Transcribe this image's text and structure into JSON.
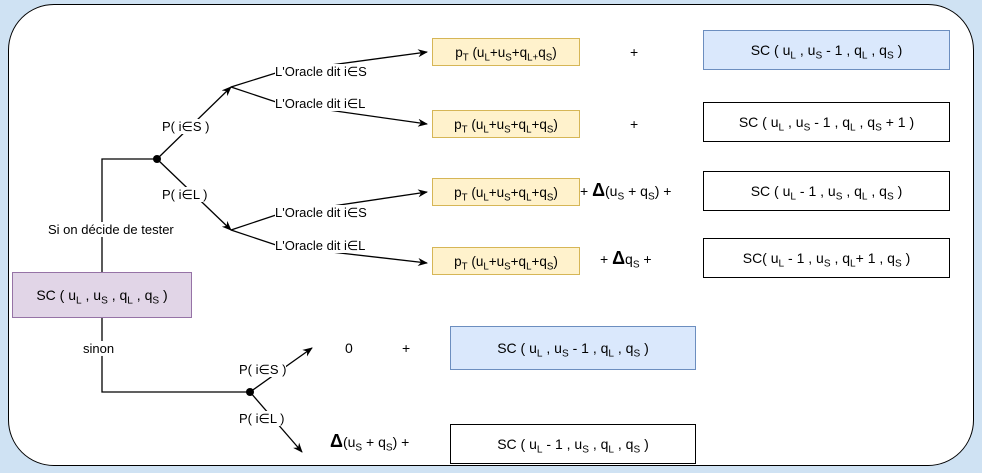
{
  "root": {
    "label": "SC ( u<sub>L</sub> , u<sub>S</sub> , q<sub>L</sub> , q<sub>S</sub> )"
  },
  "labels": {
    "test": "Si on décide de tester",
    "sinon": "sinon",
    "p_s_test": "P( i∈S )",
    "p_l_test": "P( i∈L )",
    "p_s_sinon": "P( i∈S )",
    "p_l_sinon": "P( i∈L )",
    "oracle_s_1": "L'Oracle dit i∈S",
    "oracle_l_1": "L'Oracle dit i∈L",
    "oracle_s_2": "L'Oracle dit i∈S",
    "oracle_l_2": "L'Oracle dit i∈L"
  },
  "rows": [
    {
      "prob": "p<sub>T</sub> (u<sub>L</sub>+u<sub>S</sub>+q<sub>L+</sub>q<sub>S</sub>)",
      "mid": "+",
      "sc": "SC ( u<sub>L</sub> , u<sub>S</sub> - 1 , q<sub>L</sub> , q<sub>S</sub> )"
    },
    {
      "prob": "p<sub>T</sub> (u<sub>L</sub>+u<sub>S</sub>+q<sub>L</sub>+q<sub>S</sub>)",
      "mid": "+",
      "sc": "SC ( u<sub>L</sub> , u<sub>S</sub> - 1 , q<sub>L</sub> , q<sub>S</sub> + 1 )"
    },
    {
      "prob": "p<sub>T</sub> (u<sub>L</sub>+u<sub>S</sub>+q<sub>L</sub>+q<sub>S</sub>)",
      "mid": "+ <span class='tri'>Δ</span>(u<sub>S</sub> + q<sub>S</sub>) +",
      "sc": "SC ( u<sub>L</sub> - 1 , u<sub>S</sub> , q<sub>L</sub> , q<sub>S</sub> )"
    },
    {
      "prob": "p<sub>T</sub> (u<sub>L</sub>+u<sub>S</sub>+q<sub>L</sub>+q<sub>S</sub>)",
      "mid": "+ <span class='tri'>Δ</span>q<sub>S</sub> +",
      "sc": "SC( u<sub>L</sub> - 1 , u<sub>S</sub> , q<sub>L</sub>+ 1 , q<sub>S</sub> )"
    },
    {
      "prob": "0",
      "mid": "+",
      "sc": "SC ( u<sub>L</sub> , u<sub>S</sub> - 1 , q<sub>L</sub> , q<sub>S</sub> )"
    },
    {
      "prob": "",
      "mid": "<span class='tri'>Δ</span>(u<sub>S</sub> + q<sub>S</sub>) +",
      "sc": "SC ( u<sub>L</sub> - 1 , u<sub>S</sub> , q<sub>L</sub> , q<sub>S</sub> )"
    }
  ],
  "colors": {
    "background": "#cfe2f3",
    "blue": "#dae8fc",
    "yellow": "#fff2cc",
    "purple": "#e1d5e7"
  }
}
